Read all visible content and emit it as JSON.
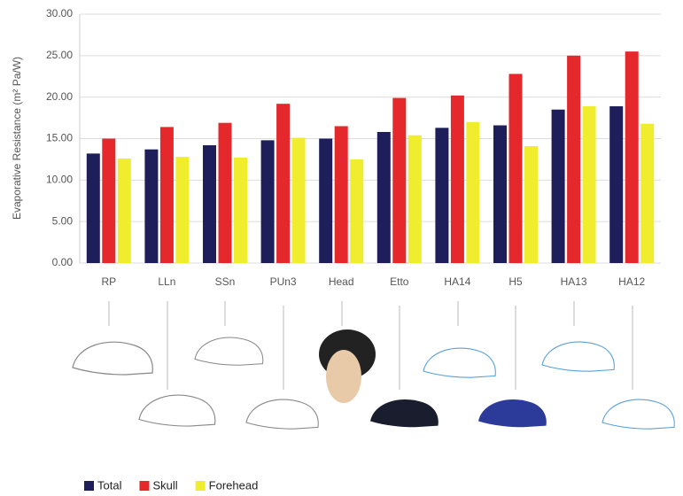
{
  "chart_data": {
    "type": "bar",
    "y_label": "Evaporative Resistance (m² Pa/W)",
    "categories": [
      "RP",
      "LLn",
      "SSn",
      "PUn3",
      "Head",
      "Etto",
      "HA14",
      "H5",
      "HA13",
      "HA12"
    ],
    "series": [
      {
        "name": "Total",
        "color": "#1e1e5a",
        "values": [
          13.2,
          13.7,
          14.2,
          14.8,
          15.0,
          15.8,
          16.3,
          16.6,
          18.5,
          18.9
        ]
      },
      {
        "name": "Skull",
        "color": "#e5282b",
        "values": [
          15.0,
          16.4,
          16.9,
          19.2,
          16.5,
          19.9,
          20.2,
          22.8,
          25.0,
          25.5
        ]
      },
      {
        "name": "Forehead",
        "color": "#f0ec2e",
        "values": [
          12.6,
          12.8,
          12.7,
          15.1,
          12.5,
          15.4,
          17.0,
          14.1,
          18.9,
          16.8
        ]
      }
    ],
    "ylim": [
      0,
      30
    ],
    "yticks": [
      {
        "value": 0,
        "label": "0.00"
      },
      {
        "value": 5,
        "label": "5.00"
      },
      {
        "value": 10,
        "label": "10.00"
      },
      {
        "value": 15,
        "label": "15.00"
      },
      {
        "value": 20,
        "label": "20.00"
      },
      {
        "value": 25,
        "label": "25.00"
      },
      {
        "value": 30,
        "label": "30.00"
      }
    ],
    "grid": true
  }
}
